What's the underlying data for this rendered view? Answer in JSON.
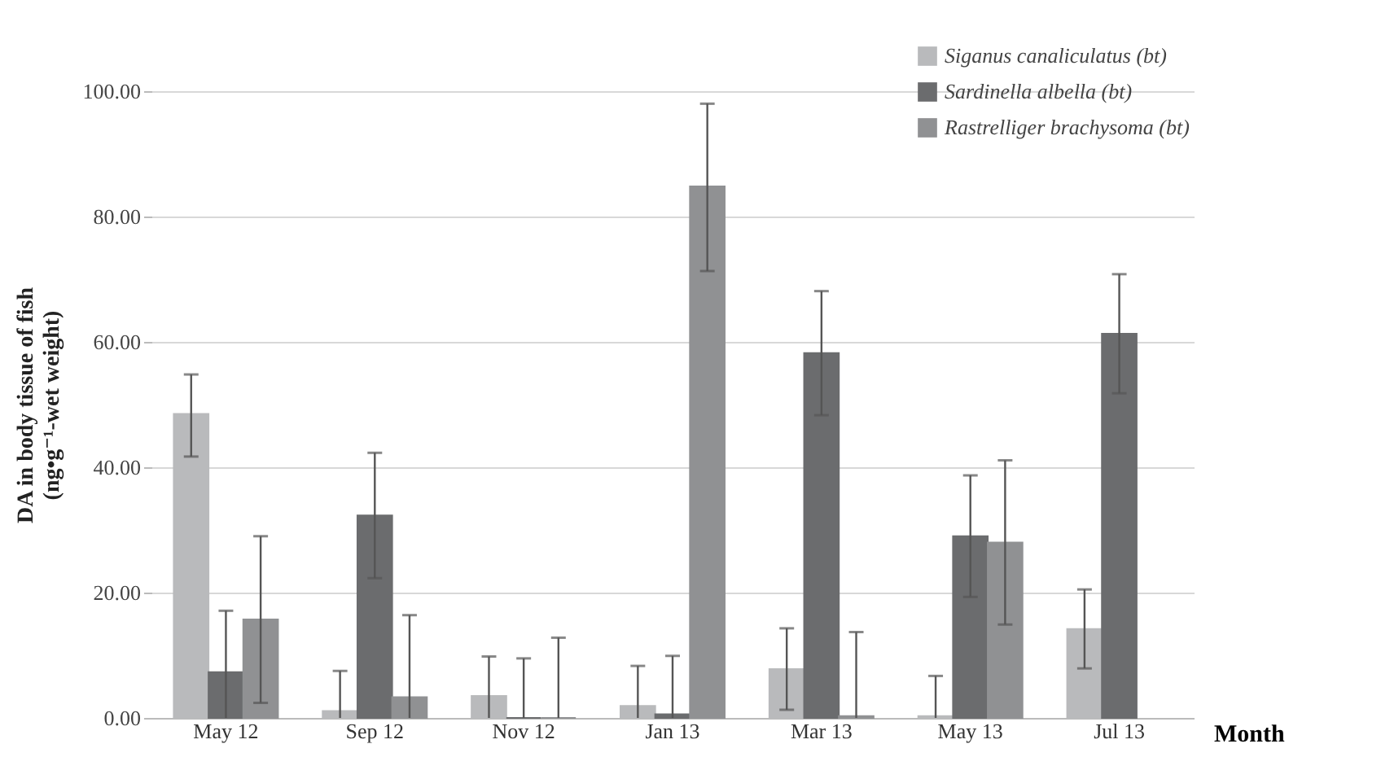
{
  "chart_data": {
    "type": "bar",
    "xlabel": "Month",
    "ylabel": "DA in body tissue of fish (ng•g⁻¹-wet weight)",
    "categories": [
      "May 12",
      "Sep 12",
      "Nov 12",
      "Jan 13",
      "Mar 13",
      "May 13",
      "Jul 13"
    ],
    "series": [
      {
        "name": "Siganus canaliculatus (bt)",
        "color": "#b9babc",
        "values": [
          48.5,
          1.1,
          3.5,
          1.9,
          7.8,
          0.3,
          14.2
        ],
        "errors": [
          [
            41.7,
            54.8
          ],
          [
            0,
            7.5
          ],
          [
            0,
            9.8
          ],
          [
            0,
            8.3
          ],
          [
            1.3,
            14.3
          ],
          [
            0,
            6.7
          ],
          [
            7.9,
            20.5
          ]
        ]
      },
      {
        "name": "Sardinella albella (bt)",
        "color": "#6b6c6e",
        "values": [
          7.3,
          32.3,
          0,
          0.6,
          58.2,
          29,
          61.3
        ],
        "errors": [
          [
            0,
            17.1
          ],
          [
            22.3,
            42.3
          ],
          [
            0,
            9.5
          ],
          [
            0,
            9.9
          ],
          [
            48.3,
            68.1
          ],
          [
            19.3,
            38.7
          ],
          [
            51.8,
            70.8
          ]
        ]
      },
      {
        "name": "Rastrelliger brachysoma (bt)",
        "color": "#909193",
        "values": [
          15.7,
          3.3,
          0,
          84.8,
          0.3,
          28,
          null
        ],
        "errors": [
          [
            2.4,
            29
          ],
          [
            0,
            16.4
          ],
          [
            0,
            12.8
          ],
          [
            71.3,
            98
          ],
          [
            0,
            13.7
          ],
          [
            14.9,
            41.1
          ],
          null
        ]
      }
    ],
    "ylim": [
      0,
      100
    ],
    "yticks": [
      {
        "value": 0,
        "label": "0.00"
      },
      {
        "value": 20,
        "label": "20.00"
      },
      {
        "value": 40,
        "label": "40.00"
      },
      {
        "value": 60,
        "label": "60.00"
      },
      {
        "value": 80,
        "label": "80.00"
      },
      {
        "value": 100,
        "label": "100.00"
      }
    ],
    "grid": "y",
    "legend": "top right"
  }
}
